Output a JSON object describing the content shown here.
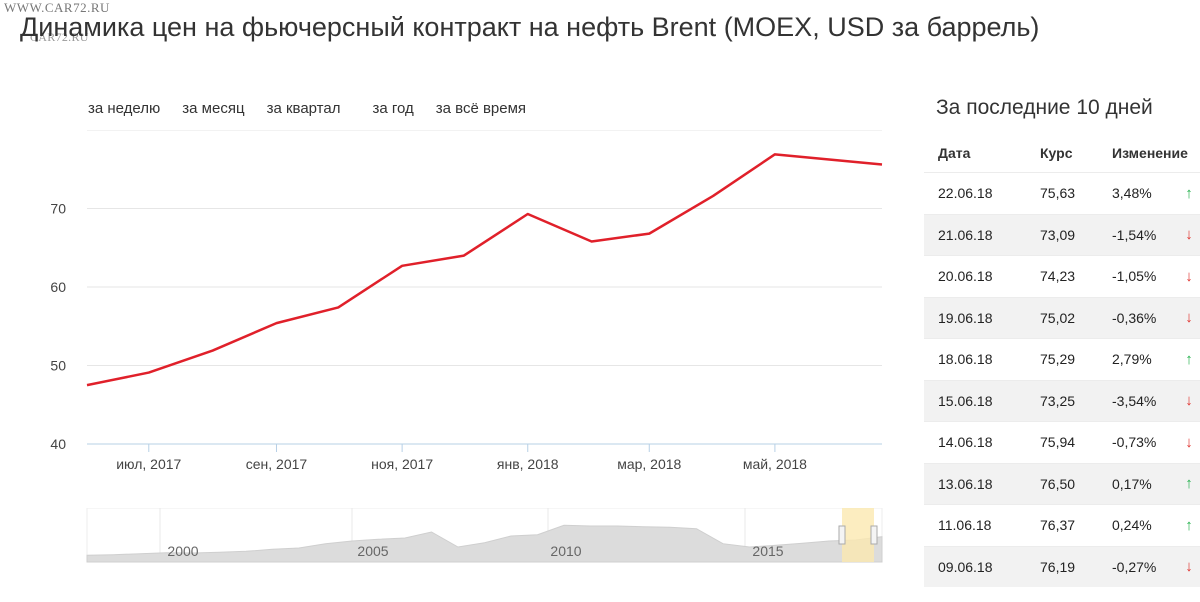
{
  "watermark": "WWW.CAR72.RU",
  "watermark2": "CAR72.RU",
  "title": "Динамика цен на фьючерсный контракт на нефть Brent (MOEX, USD за баррель)",
  "tabs": [
    "за неделю",
    "за месяц",
    "за квартал",
    "за год",
    "за всё время"
  ],
  "colors": {
    "line": "#e0202a",
    "grid": "#e6e6e6",
    "axis": "#b7d0e6",
    "up": "#22b04b",
    "down": "#e0312c",
    "navigator": "#dcdcdc",
    "selection": "#fbe9b0"
  },
  "chart_data": {
    "type": "line",
    "title": "Динамика цен на фьючерсный контракт на нефть Brent (MOEX, USD за баррель)",
    "xlabel": "",
    "ylabel": "",
    "x": [
      "2017-06-01",
      "2017-07-01",
      "2017-08-01",
      "2017-09-01",
      "2017-10-01",
      "2017-11-01",
      "2017-12-01",
      "2018-01-01",
      "2018-02-01",
      "2018-03-01",
      "2018-04-01",
      "2018-05-01",
      "2018-06-22"
    ],
    "series": [
      {
        "values": [
          47.5,
          49.1,
          51.9,
          55.4,
          57.4,
          62.7,
          64.0,
          69.3,
          65.8,
          66.8,
          71.6,
          76.9,
          75.6
        ]
      }
    ],
    "ylim": [
      40,
      80
    ],
    "yticks": [
      40,
      50,
      60,
      70
    ],
    "xticks": [
      "июл, 2017",
      "сен, 2017",
      "ноя, 2017",
      "янв, 2018",
      "мар, 2018",
      "май, 2018"
    ],
    "grid": true,
    "navigator": {
      "labels": [
        "2000",
        "2005",
        "2010",
        "2015"
      ],
      "values": [
        20,
        22,
        25,
        28,
        27,
        29,
        32,
        38,
        42,
        55,
        63,
        68,
        72,
        90,
        45,
        58,
        78,
        82,
        110,
        108,
        108,
        106,
        104,
        100,
        55,
        45,
        50,
        56,
        63,
        66,
        76
      ]
    }
  },
  "side": {
    "title": "За последние 10 дней",
    "headers": {
      "date": "Дата",
      "rate": "Курс",
      "change": "Изменение"
    },
    "rows": [
      {
        "date": "22.06.18",
        "rate": "75,63",
        "change": "3,48%",
        "dir": "up",
        "arrow": "↑"
      },
      {
        "date": "21.06.18",
        "rate": "73,09",
        "change": "-1,54%",
        "dir": "down",
        "arrow": "↓"
      },
      {
        "date": "20.06.18",
        "rate": "74,23",
        "change": "-1,05%",
        "dir": "down",
        "arrow": "↓"
      },
      {
        "date": "19.06.18",
        "rate": "75,02",
        "change": "-0,36%",
        "dir": "down",
        "arrow": "↓"
      },
      {
        "date": "18.06.18",
        "rate": "75,29",
        "change": "2,79%",
        "dir": "up",
        "arrow": "↑"
      },
      {
        "date": "15.06.18",
        "rate": "73,25",
        "change": "-3,54%",
        "dir": "down",
        "arrow": "↓"
      },
      {
        "date": "14.06.18",
        "rate": "75,94",
        "change": "-0,73%",
        "dir": "down",
        "arrow": "↓"
      },
      {
        "date": "13.06.18",
        "rate": "76,50",
        "change": "0,17%",
        "dir": "up",
        "arrow": "↑"
      },
      {
        "date": "11.06.18",
        "rate": "76,37",
        "change": "0,24%",
        "dir": "up",
        "arrow": "↑"
      },
      {
        "date": "09.06.18",
        "rate": "76,19",
        "change": "-0,27%",
        "dir": "down",
        "arrow": "↓"
      }
    ]
  }
}
